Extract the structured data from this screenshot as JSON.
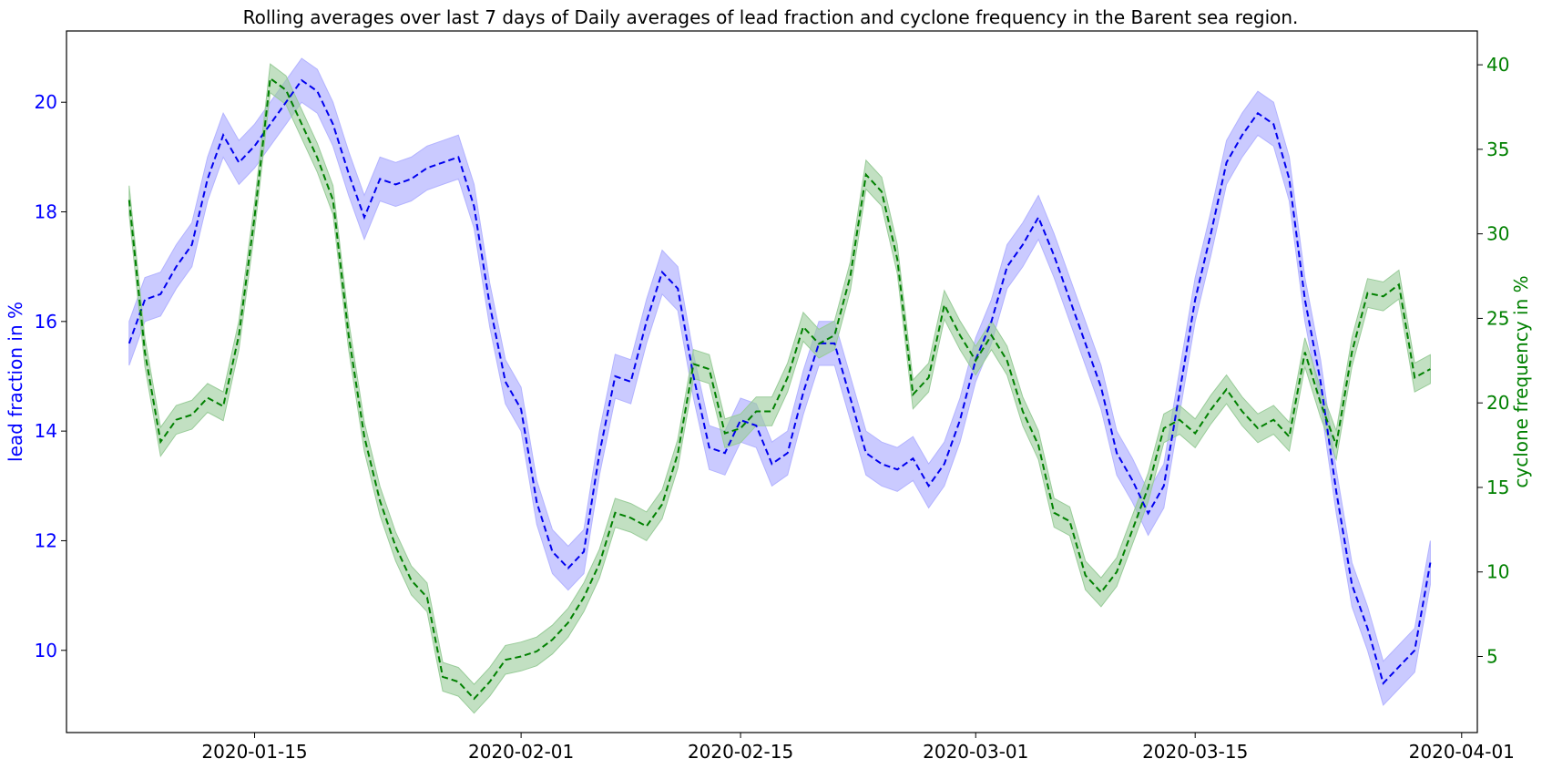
{
  "chart_data": {
    "type": "line",
    "title": "Rolling averages over last 7 days of Daily averages of lead fraction and cyclone frequency in the Barent sea region.",
    "xlabel": "",
    "x_type": "date",
    "x_start": "2020-01-07",
    "x_end": "2020-03-31",
    "xlim": [
      "2020-01-03",
      "2020-04-02"
    ],
    "x_ticks": [
      "2020-01-15",
      "2020-02-01",
      "2020-02-15",
      "2020-03-01",
      "2020-03-15",
      "2020-04-01"
    ],
    "ylabel_left": "lead fraction in %",
    "ylabel_right": "cyclone frequency in %",
    "ylim_left": [
      8.5,
      21.3
    ],
    "ylim_right": [
      0.5,
      42
    ],
    "yticks_left": [
      10,
      12,
      14,
      16,
      18,
      20
    ],
    "yticks_right": [
      5,
      10,
      15,
      20,
      25,
      30,
      35,
      40
    ],
    "grid": false,
    "colors": {
      "lead": "#0000ee",
      "lead_band": "#b3b3ff",
      "cyclone": "#008000",
      "cyclone_band": "#99cc99",
      "left_axis_text": "#0000ff",
      "right_axis_text": "#008000"
    },
    "series": [
      {
        "name": "lead fraction",
        "axis": "left",
        "style": "dashed",
        "values": [
          15.6,
          16.4,
          16.5,
          17.0,
          17.4,
          18.6,
          19.4,
          18.9,
          19.2,
          19.6,
          20.0,
          20.4,
          20.2,
          19.6,
          18.7,
          17.9,
          18.6,
          18.5,
          18.6,
          18.8,
          18.9,
          19.0,
          18.1,
          16.3,
          14.9,
          14.4,
          12.7,
          11.8,
          11.5,
          11.8,
          13.6,
          15.0,
          14.9,
          16.0,
          16.9,
          16.6,
          15.0,
          13.7,
          13.6,
          14.2,
          14.1,
          13.4,
          13.6,
          14.7,
          15.6,
          15.6,
          14.6,
          13.6,
          13.4,
          13.3,
          13.5,
          13.0,
          13.4,
          14.2,
          15.3,
          16.0,
          17.0,
          17.4,
          17.9,
          17.2,
          16.4,
          15.6,
          14.8,
          13.6,
          13.1,
          12.5,
          13.0,
          14.7,
          16.4,
          17.6,
          18.9,
          19.4,
          19.8,
          19.6,
          18.6,
          16.4,
          14.9,
          12.9,
          11.2,
          10.4,
          9.4,
          9.7,
          10.0,
          11.6
        ]
      },
      {
        "name": "cyclone frequency",
        "axis": "right",
        "style": "dashed",
        "values": [
          32,
          23,
          17.7,
          19,
          19.3,
          20.3,
          19.8,
          24,
          31,
          39.2,
          38.5,
          36.5,
          34.5,
          32,
          24,
          18,
          14.2,
          11.5,
          9.5,
          8.5,
          3.8,
          3.5,
          2.5,
          3.5,
          4.8,
          5.0,
          5.3,
          6.0,
          7.0,
          8.5,
          10.5,
          13.5,
          13.2,
          12.7,
          14,
          17,
          22.3,
          22.0,
          18.2,
          18.5,
          19.5,
          19.5,
          21.5,
          24.5,
          23.5,
          24.0,
          27.5,
          33.5,
          32.5,
          28.5,
          20.5,
          21.5,
          25.8,
          24.0,
          22.5,
          24.0,
          22.5,
          19.5,
          17.5,
          13.5,
          13.0,
          9.8,
          8.8,
          10.0,
          12.5,
          15.0,
          18.5,
          19.0,
          18.2,
          19.6,
          20.8,
          19.5,
          18.5,
          19.0,
          18.0,
          23.0,
          20.0,
          17.5,
          23.0,
          26.5,
          26.3,
          27.0,
          21.5,
          22.0
        ]
      }
    ]
  }
}
